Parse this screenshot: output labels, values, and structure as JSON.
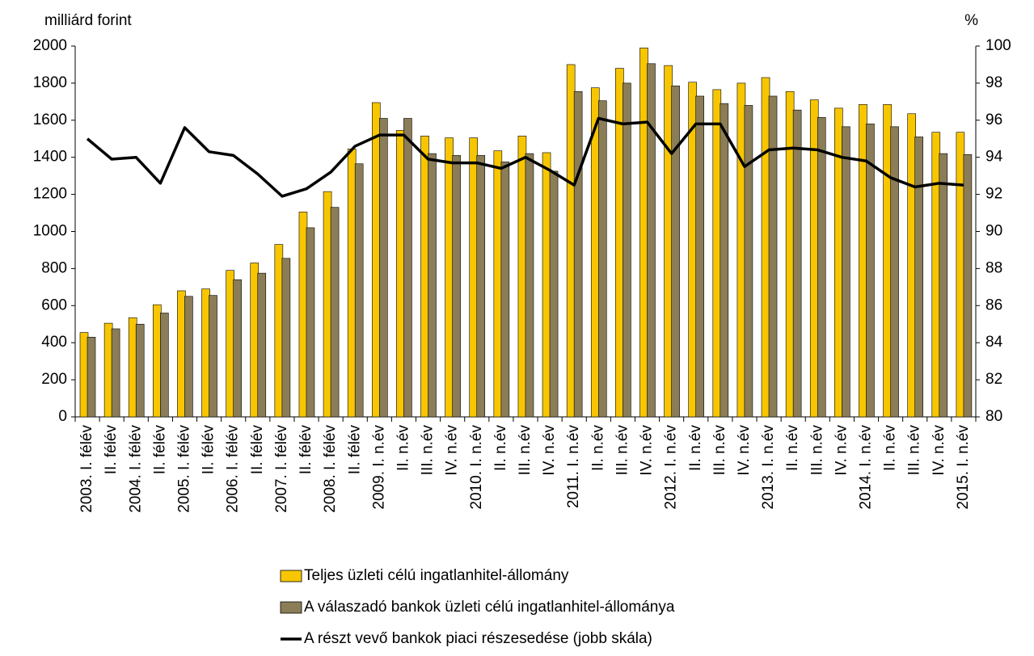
{
  "chart_data": {
    "type": "bar",
    "y_label": "milliárd forint",
    "y2_label": "%",
    "categories": [
      "2003. I. félév",
      "II. félév",
      "2004. I. félév",
      "II. félév",
      "2005. I. félév",
      "II. félév",
      "2006. I. félév",
      "II. félév",
      "2007. I. félév",
      "II. félév",
      "2008. I. félév",
      "II. félév",
      "2009. I. n.év",
      "II. n.év",
      "III. n.év",
      "IV. n.év",
      "2010. I. n.év",
      "II. n.év",
      "III. n.év",
      "IV. n.év",
      "2011. I. n.év",
      "II. n.év",
      "III. n.év",
      "IV. n.év",
      "2012. I. n.év",
      "II. n.év",
      "III. n.év",
      "IV. n.év",
      "2013. I. n.év",
      "II. n.év",
      "III. n.év",
      "IV. n.év",
      "2014. I. n.év",
      "II. n.év",
      "III. n.év",
      "IV. n.év",
      "2015. I. n.év"
    ],
    "series": [
      {
        "name": "Teljes üzleti célú ingatlanhitel-állomány",
        "type": "bar",
        "color": "#f7c600",
        "values": [
          455,
          505,
          535,
          605,
          680,
          690,
          790,
          830,
          930,
          1105,
          1215,
          1445,
          1695,
          1545,
          1515,
          1505,
          1505,
          1435,
          1515,
          1425,
          1900,
          1775,
          1880,
          1990,
          1895,
          1805,
          1765,
          1800,
          1830,
          1755,
          1710,
          1665,
          1685,
          1685,
          1635,
          1535,
          1535
        ]
      },
      {
        "name": "A válaszadó bankok üzleti célú ingatlanhitel-állománya",
        "type": "bar",
        "color": "#8b7d58",
        "values": [
          430,
          475,
          500,
          560,
          650,
          655,
          740,
          775,
          855,
          1020,
          1130,
          1365,
          1610,
          1610,
          1420,
          1410,
          1410,
          1375,
          1420,
          1325,
          1755,
          1705,
          1800,
          1905,
          1785,
          1730,
          1690,
          1680,
          1730,
          1655,
          1615,
          1565,
          1580,
          1565,
          1510,
          1420,
          1415
        ]
      },
      {
        "name": "A részt vevő bankok piaci részesedése (jobb skála)",
        "type": "line",
        "axis": "y2",
        "color": "#000000",
        "values": [
          95.0,
          93.9,
          94.0,
          92.6,
          95.6,
          94.3,
          94.1,
          93.1,
          91.9,
          92.3,
          93.2,
          94.6,
          95.2,
          95.2,
          93.9,
          93.7,
          93.7,
          93.4,
          94.0,
          93.3,
          92.5,
          96.1,
          95.8,
          95.9,
          94.2,
          95.8,
          95.8,
          93.5,
          94.4,
          94.5,
          94.4,
          94.0,
          93.8,
          92.9,
          92.4,
          92.6,
          92.5
        ]
      }
    ],
    "ylim": [
      0,
      2000
    ],
    "yticks": [
      0,
      200,
      400,
      600,
      800,
      1000,
      1200,
      1400,
      1600,
      1800,
      2000
    ],
    "y2lim": [
      80,
      100
    ],
    "y2ticks": [
      80,
      82,
      84,
      86,
      88,
      90,
      92,
      94,
      96,
      98,
      100
    ],
    "grid": false,
    "legend": "bottom"
  }
}
